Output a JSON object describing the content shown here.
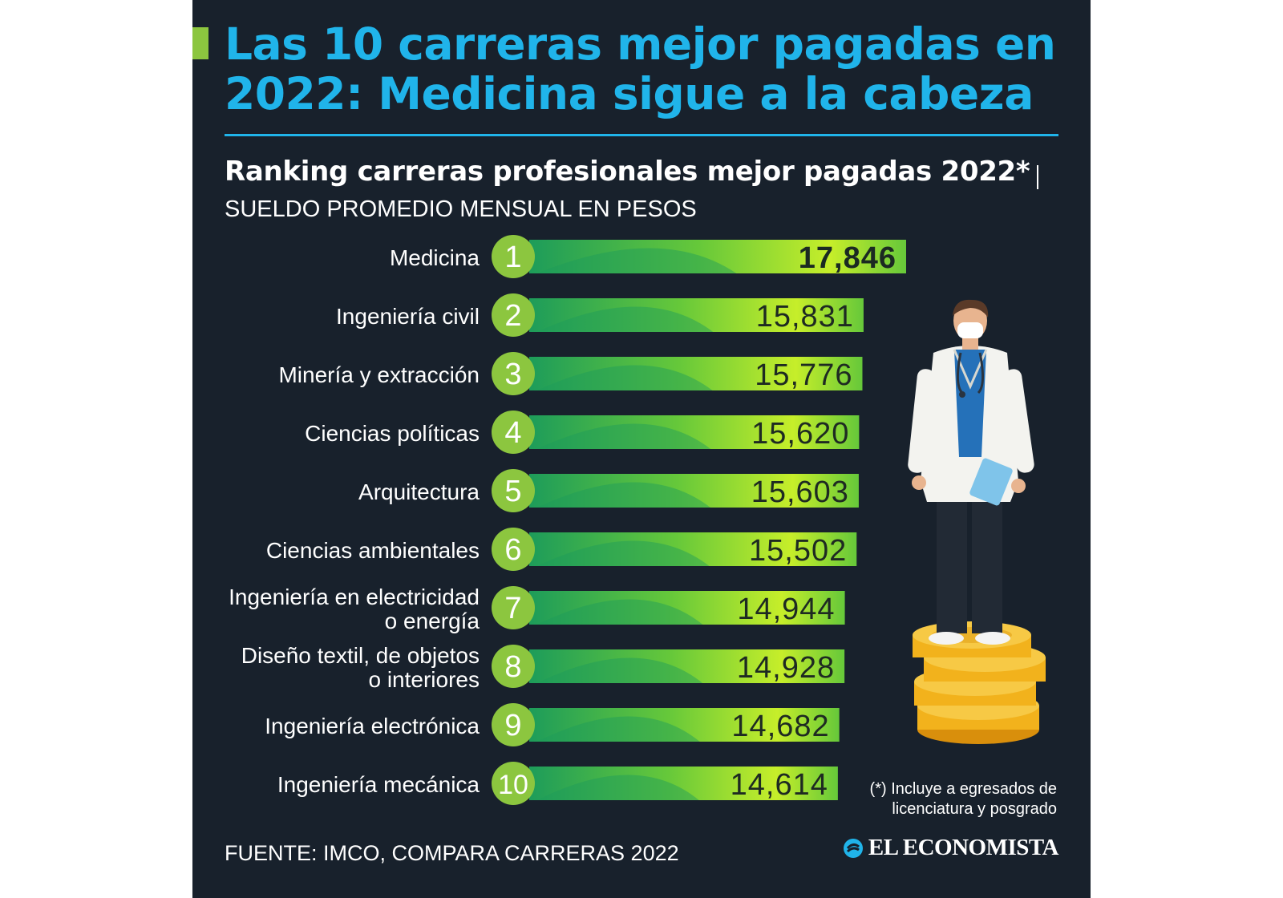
{
  "header": {
    "title": "Las 10 carreras mejor pagadas en 2022: Medicina sigue a la cabeza"
  },
  "chart_data": {
    "type": "bar",
    "title": "Ranking carreras profesionales mejor pagadas 2022*",
    "subtitle": "SUELDO PROMEDIO MENSUAL EN PESOS",
    "orientation": "horizontal",
    "categories": [
      "Medicina",
      "Ingeniería civil",
      "Minería y extracción",
      "Ciencias políticas",
      "Arquitectura",
      "Ciencias ambientales",
      "Ingeniería en electricidad o energía",
      "Diseño textil, de objetos o interiores",
      "Ingeniería electrónica",
      "Ingeniería mecánica"
    ],
    "category_lines": [
      [
        "Medicina"
      ],
      [
        "Ingeniería civil"
      ],
      [
        "Minería y extracción"
      ],
      [
        "Ciencias políticas"
      ],
      [
        "Arquitectura"
      ],
      [
        "Ciencias ambientales"
      ],
      [
        "Ingeniería en electricidad",
        "o energía"
      ],
      [
        "Diseño textil, de objetos",
        "o interiores"
      ],
      [
        "Ingeniería electrónica"
      ],
      [
        "Ingeniería mecánica"
      ]
    ],
    "ranks": [
      1,
      2,
      3,
      4,
      5,
      6,
      7,
      8,
      9,
      10
    ],
    "values": [
      17846,
      15831,
      15776,
      15620,
      15603,
      15502,
      14944,
      14928,
      14682,
      14614
    ],
    "value_labels": [
      "17,846",
      "15,831",
      "15,776",
      "15,620",
      "15,603",
      "15,502",
      "14,944",
      "14,928",
      "14,682",
      "14,614"
    ],
    "colors": {
      "bar_light": "#c6ee2a",
      "bar_mid": "#66c83a",
      "bar_dark": "#1d9c5a",
      "rank_circle": "#8cc63f",
      "highlight_text": "#1b2a22"
    }
  },
  "footer": {
    "note": "(*) Incluye a egresados de licenciatura y posgrado",
    "source": "FUENTE: IMCO, COMPARA CARRERAS 2022",
    "brand": "EL ECONOMISTA"
  },
  "theme": {
    "background": "#18212c",
    "title_color": "#20b4ea",
    "accent": "#8cc63f"
  },
  "illustration": {
    "subject": "doctor standing on gold coins",
    "icons": [
      "doctor-icon",
      "coin-stack-icon"
    ]
  }
}
